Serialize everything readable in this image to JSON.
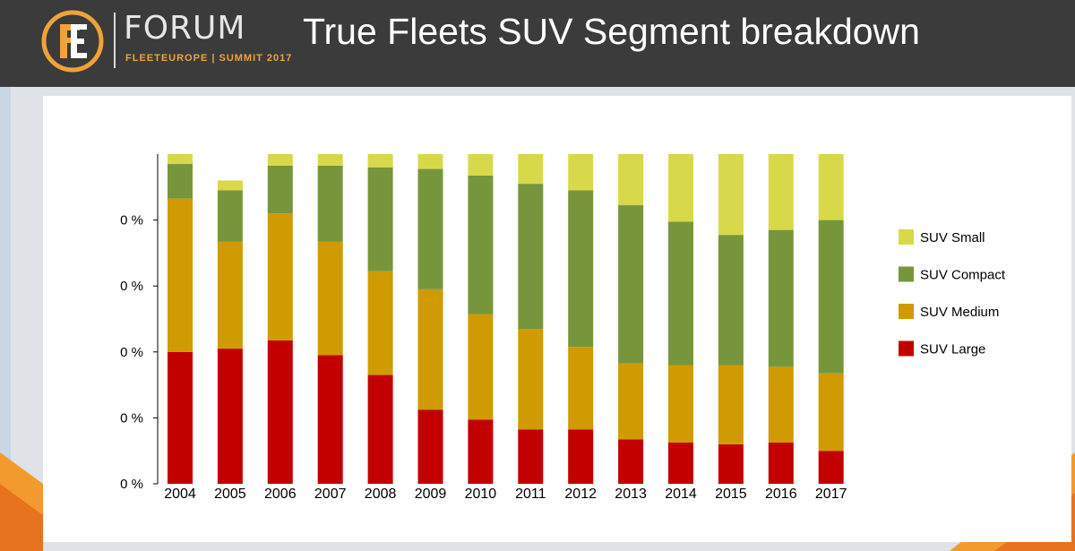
{
  "header": {
    "brand_name": "FORUM",
    "brand_sub": "FLEETEUROPE | SUMMIT 2017",
    "title": "True Fleets SUV Segment breakdown"
  },
  "colors": {
    "header_bg": "#3b3b3b",
    "accent_orange": "#f0a23a",
    "suv_small": "#d8d94a",
    "suv_compact": "#77963c",
    "suv_medium": "#cf9b00",
    "suv_large": "#c20000"
  },
  "chart_data": {
    "type": "bar",
    "stacked": true,
    "title": "",
    "xlabel": "",
    "ylabel": "",
    "ylim": [
      0,
      100
    ],
    "y_tick_labels": [
      "0 %",
      "0 %",
      "0 %",
      "0 %",
      "0 %"
    ],
    "legend_position": "right",
    "grid": false,
    "categories": [
      "2004",
      "2005",
      "2006",
      "2007",
      "2008",
      "2009",
      "2010",
      "2011",
      "2012",
      "2013",
      "2014",
      "2015",
      "2016",
      "2017"
    ],
    "series": [
      {
        "name": "SUV Large",
        "color": "#c20000",
        "values": [
          40,
          41,
          43.5,
          39,
          33,
          22.5,
          19.5,
          16.5,
          16.5,
          13.5,
          12.5,
          12,
          12.5,
          10
        ]
      },
      {
        "name": "SUV Medium",
        "color": "#cf9b00",
        "values": [
          46.5,
          32.5,
          38.5,
          34.5,
          31.5,
          36.5,
          32,
          30.5,
          25,
          23,
          23.5,
          24,
          23,
          23.5
        ]
      },
      {
        "name": "SUV Compact",
        "color": "#77963c",
        "values": [
          10.5,
          15.5,
          14.5,
          23,
          31.5,
          36.5,
          42,
          44,
          47.5,
          48,
          43.5,
          39.5,
          41.5,
          46.5
        ]
      },
      {
        "name": "SUV Small",
        "color": "#d8d94a",
        "values": [
          3,
          3,
          3.5,
          3.5,
          4,
          4.5,
          6.5,
          9,
          11,
          15.5,
          20.5,
          24.5,
          23,
          20
        ]
      }
    ]
  }
}
